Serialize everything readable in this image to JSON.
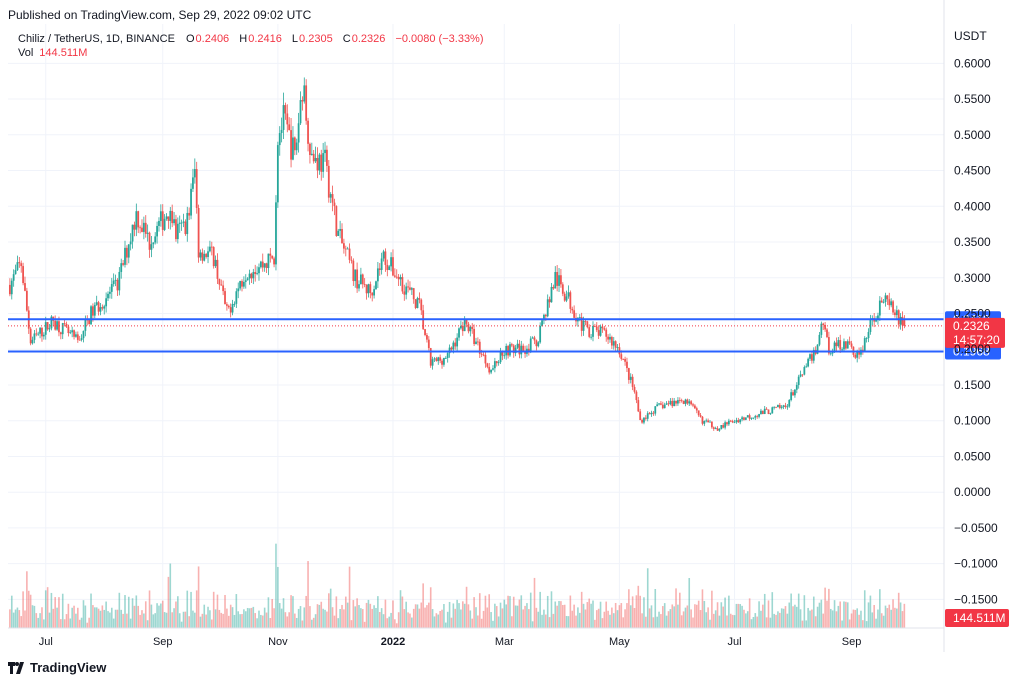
{
  "header": {
    "published": "Published on TradingView.com, Sep 29, 2022 09:02 UTC"
  },
  "legend": {
    "symbol": "Chiliz / TetherUS, 1D, BINANCE",
    "o_label": "O",
    "o_value": "0.2406",
    "h_label": "H",
    "h_value": "0.2416",
    "l_label": "L",
    "l_value": "0.2305",
    "c_label": "C",
    "c_value": "0.2326",
    "change": "−0.0080 (−3.33%)",
    "vol_label": "Vol",
    "vol_value": "144.511M"
  },
  "footer": {
    "brand": "TradingView"
  },
  "colors": {
    "up": "#26a69a",
    "down": "#ef5350",
    "line": "#2962ff",
    "grid": "#f0f3fa",
    "last": "#f23645"
  },
  "chart_data": {
    "type": "candlestick",
    "title": "",
    "currency": "USDT",
    "y_ticks": [
      "0.6000",
      "0.5500",
      "0.5000",
      "0.4500",
      "0.4000",
      "0.3500",
      "0.3000",
      "0.2500",
      "0.2000",
      "0.1500",
      "0.1000",
      "0.0500",
      "0.0000",
      "−0.0500",
      "−0.1000",
      "−0.1500"
    ],
    "ylim": [
      -0.19,
      0.655
    ],
    "x_ticks": [
      {
        "label": "Jul",
        "date": "2021-07-01",
        "bold": false
      },
      {
        "label": "Sep",
        "date": "2021-09-01",
        "bold": false
      },
      {
        "label": "Nov",
        "date": "2021-11-01",
        "bold": false
      },
      {
        "label": "2022",
        "date": "2022-01-01",
        "bold": true
      },
      {
        "label": "Mar",
        "date": "2022-03-01",
        "bold": false
      },
      {
        "label": "May",
        "date": "2022-05-01",
        "bold": false
      },
      {
        "label": "Jul",
        "date": "2022-07-01",
        "bold": false
      },
      {
        "label": "Sep",
        "date": "2022-09-01",
        "bold": false
      }
    ],
    "xlim": [
      "2021-06-11",
      "2022-10-20"
    ],
    "horizontal_lines": [
      {
        "value": 0.2419,
        "label": "0.2419"
      },
      {
        "value": 0.1968,
        "label": "0.1968"
      }
    ],
    "last_price": {
      "value": 0.2326,
      "label": "0.2326",
      "countdown": "14:57:20"
    },
    "volume_label": "144.511M",
    "price_path": [
      {
        "date": "2021-06-12",
        "close": 0.29
      },
      {
        "date": "2021-06-18",
        "close": 0.32
      },
      {
        "date": "2021-06-23",
        "close": 0.21
      },
      {
        "date": "2021-07-05",
        "close": 0.24
      },
      {
        "date": "2021-07-18",
        "close": 0.21
      },
      {
        "date": "2021-07-25",
        "close": 0.25
      },
      {
        "date": "2021-08-08",
        "close": 0.29
      },
      {
        "date": "2021-08-18",
        "close": 0.39
      },
      {
        "date": "2021-08-25",
        "close": 0.35
      },
      {
        "date": "2021-09-05",
        "close": 0.4
      },
      {
        "date": "2021-09-08",
        "close": 0.36
      },
      {
        "date": "2021-09-14",
        "close": 0.38
      },
      {
        "date": "2021-09-18",
        "close": 0.45
      },
      {
        "date": "2021-09-20",
        "close": 0.34
      },
      {
        "date": "2021-09-28",
        "close": 0.33
      },
      {
        "date": "2021-10-05",
        "close": 0.25
      },
      {
        "date": "2021-10-15",
        "close": 0.31
      },
      {
        "date": "2021-10-25",
        "close": 0.32
      },
      {
        "date": "2021-10-30",
        "close": 0.33
      },
      {
        "date": "2021-11-01",
        "close": 0.5
      },
      {
        "date": "2021-11-04",
        "close": 0.52
      },
      {
        "date": "2021-11-10",
        "close": 0.47
      },
      {
        "date": "2021-11-14",
        "close": 0.57
      },
      {
        "date": "2021-11-19",
        "close": 0.47
      },
      {
        "date": "2021-11-26",
        "close": 0.46
      },
      {
        "date": "2021-12-03",
        "close": 0.36
      },
      {
        "date": "2021-12-12",
        "close": 0.3
      },
      {
        "date": "2021-12-20",
        "close": 0.28
      },
      {
        "date": "2021-12-27",
        "close": 0.33
      },
      {
        "date": "2022-01-04",
        "close": 0.3
      },
      {
        "date": "2022-01-15",
        "close": 0.26
      },
      {
        "date": "2022-01-21",
        "close": 0.18
      },
      {
        "date": "2022-01-30",
        "close": 0.19
      },
      {
        "date": "2022-02-08",
        "close": 0.24
      },
      {
        "date": "2022-02-14",
        "close": 0.21
      },
      {
        "date": "2022-02-22",
        "close": 0.17
      },
      {
        "date": "2022-03-01",
        "close": 0.2
      },
      {
        "date": "2022-03-10",
        "close": 0.2
      },
      {
        "date": "2022-03-18",
        "close": 0.21
      },
      {
        "date": "2022-03-28",
        "close": 0.3
      },
      {
        "date": "2022-04-04",
        "close": 0.27
      },
      {
        "date": "2022-04-12",
        "close": 0.23
      },
      {
        "date": "2022-04-24",
        "close": 0.22
      },
      {
        "date": "2022-05-01",
        "close": 0.2
      },
      {
        "date": "2022-05-09",
        "close": 0.14
      },
      {
        "date": "2022-05-12",
        "close": 0.1
      },
      {
        "date": "2022-05-22",
        "close": 0.12
      },
      {
        "date": "2022-06-05",
        "close": 0.13
      },
      {
        "date": "2022-06-14",
        "close": 0.1
      },
      {
        "date": "2022-06-22",
        "close": 0.09
      },
      {
        "date": "2022-07-01",
        "close": 0.1
      },
      {
        "date": "2022-07-14",
        "close": 0.11
      },
      {
        "date": "2022-07-28",
        "close": 0.12
      },
      {
        "date": "2022-08-05",
        "close": 0.16
      },
      {
        "date": "2022-08-13",
        "close": 0.2
      },
      {
        "date": "2022-08-17",
        "close": 0.24
      },
      {
        "date": "2022-08-20",
        "close": 0.2
      },
      {
        "date": "2022-08-28",
        "close": 0.21
      },
      {
        "date": "2022-09-05",
        "close": 0.19
      },
      {
        "date": "2022-09-12",
        "close": 0.24
      },
      {
        "date": "2022-09-17",
        "close": 0.27
      },
      {
        "date": "2022-09-24",
        "close": 0.25
      },
      {
        "date": "2022-09-29",
        "close": 0.2326
      }
    ]
  }
}
